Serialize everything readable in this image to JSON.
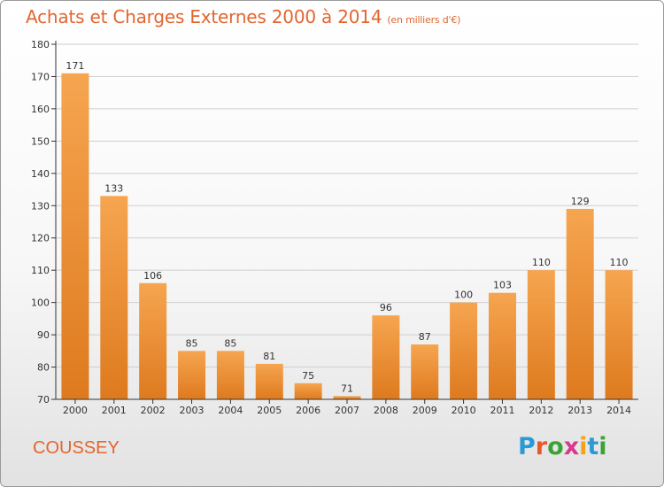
{
  "header": {
    "title": "Achats et Charges Externes 2000 à 2014",
    "subtitle": "(en milliers d'€)"
  },
  "footer": {
    "commune": "COUSSEY",
    "logo_text": "Proxiti",
    "logo_colors": [
      "#2a9ad6",
      "#e8582a",
      "#3aa335",
      "#d63a8c",
      "#f2a31c",
      "#2a9ad6",
      "#3aa335"
    ]
  },
  "colors": {
    "bar_top": "#f6a550",
    "bar_bottom": "#de7a1e",
    "accent": "#e2662f",
    "axis": "#333333",
    "grid": "#cfcfcf"
  },
  "chart_data": {
    "type": "bar",
    "title": "Achats et Charges Externes 2000 à 2014",
    "subtitle": "(en milliers d'€)",
    "categories": [
      "2000",
      "2001",
      "2002",
      "2003",
      "2004",
      "2005",
      "2006",
      "2007",
      "2008",
      "2009",
      "2010",
      "2011",
      "2012",
      "2013",
      "2014"
    ],
    "values": [
      171,
      133,
      106,
      85,
      85,
      81,
      75,
      71,
      96,
      87,
      100,
      103,
      110,
      129,
      110
    ],
    "ylim": [
      70,
      180
    ],
    "yticks": [
      70,
      80,
      90,
      100,
      110,
      120,
      130,
      140,
      150,
      160,
      170,
      180
    ],
    "grid": true,
    "legend": "none"
  }
}
